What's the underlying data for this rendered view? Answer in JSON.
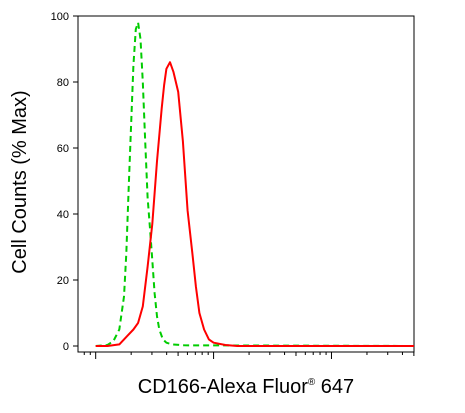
{
  "chart_data": {
    "type": "line",
    "title": "",
    "xlabel": {
      "prefix": "CD166-Alexa Fluor",
      "mark": "®",
      "suffix": " 647"
    },
    "ylabel": "Cell Counts (% Max)",
    "x_scale": "log",
    "xlim": [
      -0.15,
      2.7
    ],
    "ylim": [
      0,
      100
    ],
    "yticks": [
      0,
      20,
      40,
      60,
      80,
      100
    ],
    "ytick_labels": [
      "0",
      "20",
      "40",
      "60",
      "80",
      "100"
    ],
    "x_major_ticks": [
      0,
      1,
      2
    ],
    "grid": false,
    "legend": "none",
    "series": [
      {
        "color": "#00cc00",
        "dash": "dashed",
        "x": [
          0.0,
          0.1,
          0.15,
          0.2,
          0.24,
          0.26,
          0.28,
          0.3,
          0.32,
          0.34,
          0.36,
          0.38,
          0.4,
          0.42,
          0.44,
          0.46,
          0.48,
          0.5,
          0.52,
          0.54,
          0.57,
          0.6,
          0.65,
          0.75,
          2.7
        ],
        "y": [
          0,
          0.3,
          1.5,
          5,
          15,
          28,
          48,
          67,
          85,
          96,
          98,
          93,
          80,
          62,
          45,
          36,
          26,
          16,
          9,
          5,
          2,
          1,
          0.5,
          0.2,
          0
        ]
      },
      {
        "color": "#ff0000",
        "dash": "solid",
        "x": [
          0.0,
          0.1,
          0.2,
          0.24,
          0.28,
          0.32,
          0.36,
          0.4,
          0.44,
          0.48,
          0.52,
          0.56,
          0.58,
          0.6,
          0.63,
          0.66,
          0.7,
          0.74,
          0.78,
          0.82,
          0.85,
          0.88,
          0.92,
          0.96,
          1.0,
          1.1,
          1.2,
          2.7
        ],
        "y": [
          0,
          0,
          0.5,
          2,
          3.5,
          5,
          7,
          12,
          24,
          37,
          56,
          72,
          79,
          84,
          86,
          83,
          77,
          62,
          41,
          28,
          18,
          10,
          5,
          2,
          1,
          0.3,
          0,
          0
        ]
      }
    ]
  }
}
